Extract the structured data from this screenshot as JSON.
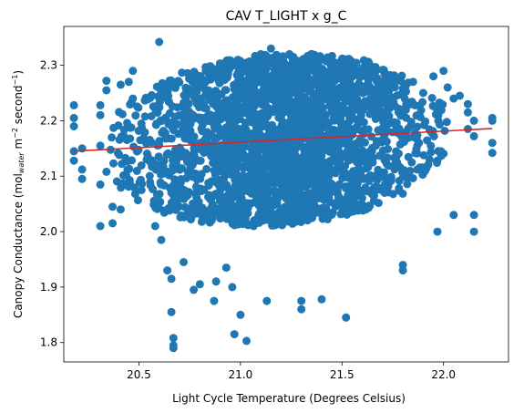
{
  "chart_data": {
    "type": "scatter",
    "title": "CAV T_LIGHT x g_C",
    "xlabel": "Light Cycle Temperature (Degrees Celsius)",
    "ylabel_main": "Canopy Conductance (mol",
    "ylabel_sub": "water",
    "ylabel_mid": " m",
    "ylabel_sup1": "−2",
    "ylabel_mid2": " second",
    "ylabel_sup2": "−1",
    "ylabel_end": ")",
    "xlim": [
      20.13,
      22.32
    ],
    "ylim": [
      1.765,
      2.37
    ],
    "xticks": [
      20.5,
      21.0,
      21.5,
      22.0
    ],
    "xtick_labels": [
      "20.5",
      "21.0",
      "21.5",
      "22.0"
    ],
    "yticks": [
      1.8,
      1.9,
      2.0,
      2.1,
      2.2,
      2.3
    ],
    "ytick_labels": [
      "1.8",
      "1.9",
      "2.0",
      "2.1",
      "2.2",
      "2.3"
    ],
    "point_color": "#1f77b4",
    "fit_color": "#d62728",
    "fit_line": {
      "x": [
        20.18,
        22.24
      ],
      "y": [
        2.145,
        2.186
      ]
    },
    "outliers": [
      [
        20.18,
        2.228
      ],
      [
        20.18,
        2.205
      ],
      [
        20.18,
        2.19
      ],
      [
        20.18,
        2.145
      ],
      [
        20.18,
        2.128
      ],
      [
        20.22,
        2.15
      ],
      [
        20.22,
        2.112
      ],
      [
        20.22,
        2.095
      ],
      [
        20.31,
        2.228
      ],
      [
        20.31,
        2.21
      ],
      [
        20.31,
        2.155
      ],
      [
        20.31,
        2.085
      ],
      [
        20.31,
        2.01
      ],
      [
        20.34,
        2.272
      ],
      [
        20.34,
        2.255
      ],
      [
        20.34,
        2.108
      ],
      [
        20.37,
        2.045
      ],
      [
        20.37,
        2.015
      ],
      [
        20.41,
        2.265
      ],
      [
        20.41,
        2.04
      ],
      [
        20.45,
        2.27
      ],
      [
        20.47,
        2.29
      ],
      [
        20.47,
        2.24
      ],
      [
        20.6,
        2.342
      ],
      [
        20.58,
        2.01
      ],
      [
        20.61,
        1.985
      ],
      [
        20.64,
        1.93
      ],
      [
        20.66,
        1.915
      ],
      [
        20.66,
        1.855
      ],
      [
        20.67,
        1.808
      ],
      [
        20.67,
        1.795
      ],
      [
        20.67,
        1.79
      ],
      [
        20.72,
        1.945
      ],
      [
        20.77,
        1.895
      ],
      [
        20.8,
        1.905
      ],
      [
        20.87,
        1.875
      ],
      [
        20.88,
        1.91
      ],
      [
        20.93,
        1.935
      ],
      [
        20.96,
        1.9
      ],
      [
        20.97,
        1.815
      ],
      [
        21.0,
        1.85
      ],
      [
        21.03,
        1.803
      ],
      [
        21.1,
        2.32
      ],
      [
        21.13,
        1.875
      ],
      [
        21.15,
        2.33
      ],
      [
        21.3,
        1.875
      ],
      [
        21.3,
        1.86
      ],
      [
        21.4,
        1.878
      ],
      [
        21.52,
        1.845
      ],
      [
        21.8,
        1.93
      ],
      [
        21.8,
        1.94
      ],
      [
        21.85,
        2.27
      ],
      [
        21.9,
        2.25
      ],
      [
        21.95,
        2.28
      ],
      [
        21.97,
        2.0
      ],
      [
        22.0,
        2.29
      ],
      [
        22.02,
        2.26
      ],
      [
        22.05,
        2.03
      ],
      [
        22.05,
        2.24
      ],
      [
        22.08,
        2.245
      ],
      [
        22.12,
        2.23
      ],
      [
        22.12,
        2.215
      ],
      [
        22.12,
        2.185
      ],
      [
        22.15,
        2.2
      ],
      [
        22.15,
        2.172
      ],
      [
        22.15,
        2.03
      ],
      [
        22.15,
        2.0
      ],
      [
        22.24,
        2.205
      ],
      [
        22.24,
        2.2
      ],
      [
        22.24,
        2.16
      ],
      [
        22.24,
        2.142
      ]
    ]
  }
}
